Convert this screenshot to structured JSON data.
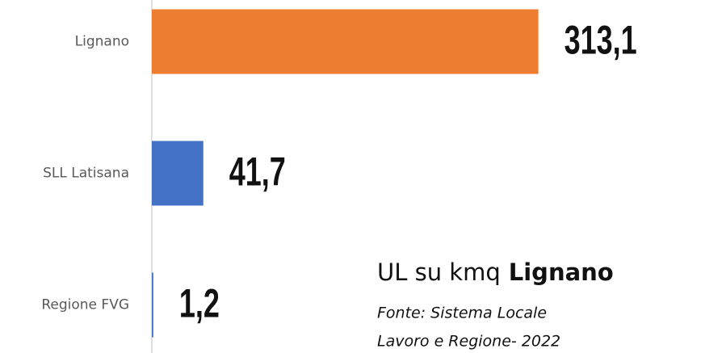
{
  "chart_data": {
    "type": "bar",
    "orientation": "horizontal",
    "categories": [
      "Lignano",
      "SLL Latisana",
      "Regione FVG"
    ],
    "values": [
      313.1,
      41.7,
      1.2
    ],
    "value_labels": [
      "313,1",
      "41,7",
      "1,2"
    ],
    "colors": [
      "#ed7d31",
      "#4472c4",
      "#4472c4"
    ],
    "xlim": [
      0,
      350
    ],
    "title": "UL su kmq",
    "title_emphasis": "Lignano",
    "source": [
      "Fonte: Sistema Locale",
      "Lavoro e Regione- 2022"
    ]
  }
}
